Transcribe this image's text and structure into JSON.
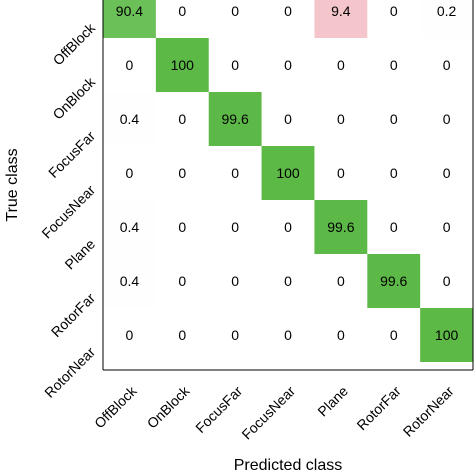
{
  "chart_data": {
    "type": "heatmap",
    "title": "",
    "xlabel": "Predicted class",
    "ylabel": "True class",
    "x_categories": [
      "OffBlock",
      "OnBlock",
      "FocusFar",
      "FocusNear",
      "Plane",
      "RotorFar",
      "RotorNear"
    ],
    "y_categories": [
      "OffBlock",
      "OnBlock",
      "FocusFar",
      "FocusNear",
      "Plane",
      "RotorFar",
      "RotorNear"
    ],
    "values": [
      [
        90.4,
        0,
        0,
        0,
        9.4,
        0,
        0.2
      ],
      [
        0,
        100,
        0,
        0,
        0,
        0,
        0
      ],
      [
        0.4,
        0,
        99.6,
        0,
        0,
        0,
        0
      ],
      [
        0,
        0,
        0,
        100,
        0,
        0,
        0
      ],
      [
        0.4,
        0,
        0,
        0,
        99.6,
        0,
        0
      ],
      [
        0.4,
        0,
        0,
        0,
        0,
        99.6,
        0
      ],
      [
        0,
        0,
        0,
        0,
        0,
        0,
        100
      ]
    ],
    "value_labels": [
      [
        "90.4",
        "0",
        "0",
        "0",
        "9.4",
        "0",
        "0.2"
      ],
      [
        "0",
        "100",
        "0",
        "0",
        "0",
        "0",
        "0"
      ],
      [
        "0.4",
        "0",
        "99.6",
        "0",
        "0",
        "0",
        "0"
      ],
      [
        "0",
        "0",
        "0",
        "100",
        "0",
        "0",
        "0"
      ],
      [
        "0.4",
        "0",
        "0",
        "0",
        "99.6",
        "0",
        "0"
      ],
      [
        "0.4",
        "0",
        "0",
        "0",
        "0",
        "99.6",
        "0"
      ],
      [
        "0",
        "0",
        "0",
        "0",
        "0",
        "0",
        "100"
      ]
    ],
    "colors": {
      "correct": "#5cb946",
      "error": "#f4c6cb",
      "background": "#ffffff",
      "axis": "#000000"
    },
    "grid": false,
    "legend": "none"
  }
}
